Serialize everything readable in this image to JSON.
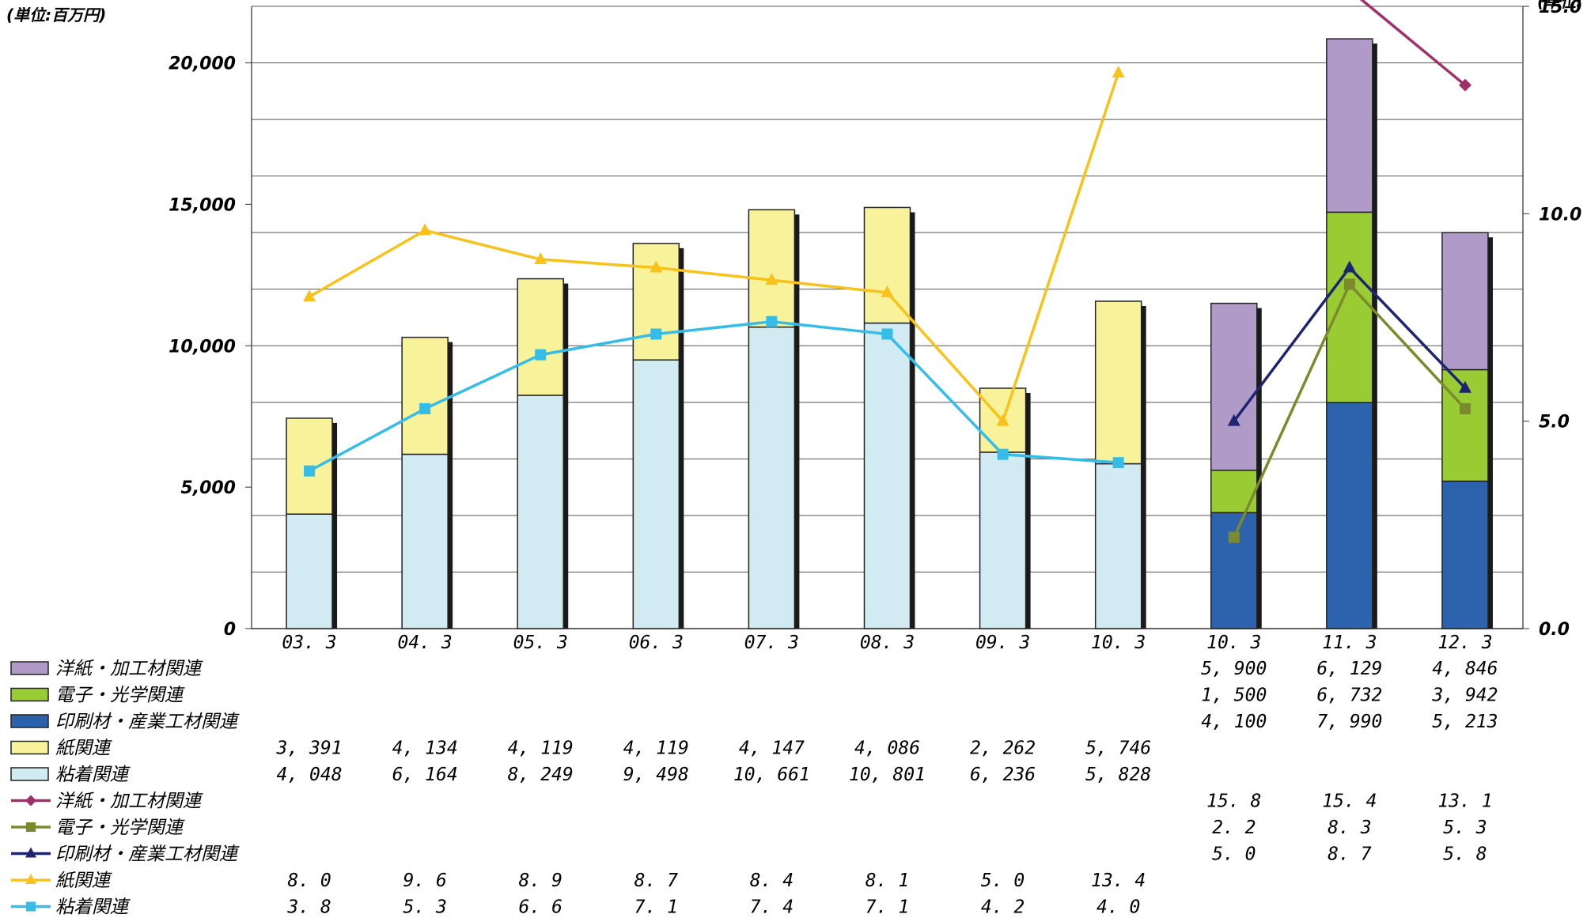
{
  "chart_data": {
    "type": "bar",
    "stacked": true,
    "combo": "bar+line",
    "left_unit": "(単位:百万円)",
    "right_unit": "(単位:",
    "y_left": {
      "min": 0,
      "max": 22000,
      "ticks": [
        0,
        5000,
        10000,
        15000,
        20000
      ],
      "tick_labels": [
        "0",
        "5,000",
        "10,000",
        "15,000",
        "20,000"
      ],
      "gridlines": [
        0,
        2000,
        4000,
        6000,
        8000,
        10000,
        12000,
        14000,
        16000,
        18000,
        20000
      ]
    },
    "y_right": {
      "min": 0,
      "max": 15.0,
      "ticks": [
        0,
        5,
        10,
        15
      ],
      "tick_labels": [
        "0.0",
        "5.0",
        "10.0",
        "15.0"
      ]
    },
    "categories": [
      "03. 3",
      "04. 3",
      "05. 3",
      "06. 3",
      "07. 3",
      "08. 3",
      "09. 3",
      "10. 3",
      "10. 3",
      "11. 3",
      "12. 3"
    ],
    "bar_series": [
      {
        "name": "洋紙・加工材関連",
        "color": "#b09bc8",
        "values": [
          null,
          null,
          null,
          null,
          null,
          null,
          null,
          null,
          5900,
          6129,
          4846
        ],
        "labels": [
          "",
          "",
          "",
          "",
          "",
          "",
          "",
          "",
          "5, 900",
          "6, 129",
          "4, 846"
        ]
      },
      {
        "name": "電子・光学関連",
        "color": "#99cc33",
        "values": [
          null,
          null,
          null,
          null,
          null,
          null,
          null,
          null,
          1500,
          6732,
          3942
        ],
        "labels": [
          "",
          "",
          "",
          "",
          "",
          "",
          "",
          "",
          "1, 500",
          "6, 732",
          "3, 942"
        ]
      },
      {
        "name": "印刷材・産業工材関連",
        "color": "#2d63ad",
        "values": [
          null,
          null,
          null,
          null,
          null,
          null,
          null,
          null,
          4100,
          7990,
          5213
        ],
        "labels": [
          "",
          "",
          "",
          "",
          "",
          "",
          "",
          "",
          "4, 100",
          "7, 990",
          "5, 213"
        ]
      },
      {
        "name": "紙関連",
        "color": "#f8f29a",
        "values": [
          3391,
          4134,
          4119,
          4119,
          4147,
          4086,
          2262,
          5746,
          null,
          null,
          null
        ],
        "labels": [
          "3, 391",
          "4, 134",
          "4, 119",
          "4, 119",
          "4, 147",
          "4, 086",
          "2, 262",
          "5, 746",
          "",
          "",
          ""
        ]
      },
      {
        "name": "粘着関連",
        "color": "#d2ebf2",
        "values": [
          4048,
          6164,
          8249,
          9498,
          10661,
          10801,
          6236,
          5828,
          null,
          null,
          null
        ],
        "labels": [
          "4, 048",
          "6, 164",
          "8, 249",
          "9, 498",
          "10, 661",
          "10, 801",
          "6, 236",
          "5, 828",
          "",
          "",
          ""
        ]
      }
    ],
    "stack_order": [
      "粘着関連",
      "紙関連",
      "印刷材・産業工材関連",
      "電子・光学関連",
      "洋紙・加工材関連"
    ],
    "line_series": [
      {
        "name": "洋紙・加工材関連",
        "color": "#a0306a",
        "marker": "diamond",
        "values": [
          null,
          null,
          null,
          null,
          null,
          null,
          null,
          null,
          15.8,
          15.4,
          13.1
        ],
        "labels": [
          "",
          "",
          "",
          "",
          "",
          "",
          "",
          "",
          "15. 8",
          "15. 4",
          "13. 1"
        ]
      },
      {
        "name": "電子・光学関連",
        "color": "#7b8a2c",
        "marker": "square",
        "values": [
          null,
          null,
          null,
          null,
          null,
          null,
          null,
          null,
          2.2,
          8.3,
          5.3
        ],
        "labels": [
          "",
          "",
          "",
          "",
          "",
          "",
          "",
          "",
          "2. 2",
          "8. 3",
          "5. 3"
        ]
      },
      {
        "name": "印刷材・産業工材関連",
        "color": "#1f2470",
        "marker": "triangle",
        "values": [
          null,
          null,
          null,
          null,
          null,
          null,
          null,
          null,
          5.0,
          8.7,
          5.8
        ],
        "labels": [
          "",
          "",
          "",
          "",
          "",
          "",
          "",
          "",
          "5. 0",
          "8. 7",
          "5. 8"
        ]
      },
      {
        "name": "紙関連",
        "color": "#f7c21a",
        "marker": "triangle",
        "values": [
          8.0,
          9.6,
          8.9,
          8.7,
          8.4,
          8.1,
          5.0,
          13.4,
          null,
          null,
          null
        ],
        "labels": [
          "8. 0",
          "9. 6",
          "8. 9",
          "8. 7",
          "8. 4",
          "8. 1",
          "5. 0",
          "13. 4",
          "",
          "",
          ""
        ]
      },
      {
        "name": "粘着関連",
        "color": "#35bde8",
        "marker": "square",
        "values": [
          3.8,
          5.3,
          6.6,
          7.1,
          7.4,
          7.1,
          4.2,
          4.0,
          null,
          null,
          null
        ],
        "labels": [
          "3. 8",
          "5. 3",
          "6. 6",
          "7. 1",
          "7. 4",
          "7. 1",
          "4. 2",
          "4. 0",
          "",
          "",
          ""
        ]
      }
    ],
    "line_segments": [
      [
        0,
        7
      ],
      [
        8,
        10
      ]
    ]
  }
}
